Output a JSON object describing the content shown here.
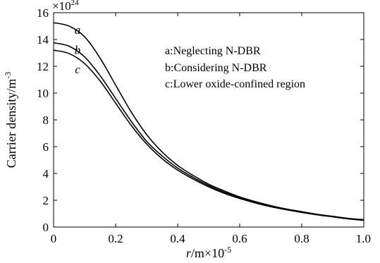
{
  "chart_data": {
    "type": "line",
    "title": "",
    "xlabel_italic": "r",
    "xlabel_rest": "/m×10",
    "xlabel_exp": "-5",
    "ylabel_base": "Carrier density/m",
    "ylabel_exp": "-3",
    "y_multiplier_base": "×10",
    "y_multiplier_exp": "24",
    "xlim": [
      0,
      1.0
    ],
    "ylim": [
      0,
      16
    ],
    "x_ticks": [
      0,
      0.2,
      0.4,
      0.6,
      0.8,
      1.0
    ],
    "x_tick_labels": [
      "0",
      "0.2",
      "0.4",
      "0.6",
      "0.8",
      "1.0"
    ],
    "y_ticks": [
      0,
      2,
      4,
      6,
      8,
      10,
      12,
      14,
      16
    ],
    "y_tick_labels": [
      "0",
      "2",
      "4",
      "6",
      "8",
      "10",
      "12",
      "14",
      "16"
    ],
    "grid": false,
    "legend_position": "top-right",
    "legend": [
      {
        "key": "a",
        "text": "Neglecting N-DBR"
      },
      {
        "key": "b",
        "text": "Considering N-DBR"
      },
      {
        "key": "c",
        "text": "Lower oxide-confined region"
      }
    ],
    "x": [
      0,
      0.05,
      0.1,
      0.15,
      0.2,
      0.25,
      0.3,
      0.35,
      0.4,
      0.45,
      0.5,
      0.55,
      0.6,
      0.65,
      0.7,
      0.75,
      0.8,
      0.85,
      0.9,
      0.95,
      1.0
    ],
    "series": [
      {
        "label": "a",
        "values": [
          15.25,
          15.0,
          14.2,
          12.6,
          10.6,
          8.6,
          6.9,
          5.6,
          4.6,
          3.85,
          3.2,
          2.7,
          2.25,
          1.9,
          1.6,
          1.35,
          1.15,
          0.95,
          0.8,
          0.65,
          0.55
        ]
      },
      {
        "label": "b",
        "values": [
          13.75,
          13.5,
          12.7,
          11.3,
          9.6,
          7.9,
          6.4,
          5.3,
          4.4,
          3.7,
          3.1,
          2.6,
          2.2,
          1.85,
          1.55,
          1.32,
          1.12,
          0.93,
          0.78,
          0.63,
          0.52
        ]
      },
      {
        "label": "c",
        "values": [
          13.2,
          12.95,
          12.2,
          10.9,
          9.25,
          7.6,
          6.2,
          5.1,
          4.25,
          3.58,
          3.0,
          2.52,
          2.13,
          1.8,
          1.52,
          1.29,
          1.09,
          0.91,
          0.76,
          0.61,
          0.5
        ]
      }
    ]
  }
}
